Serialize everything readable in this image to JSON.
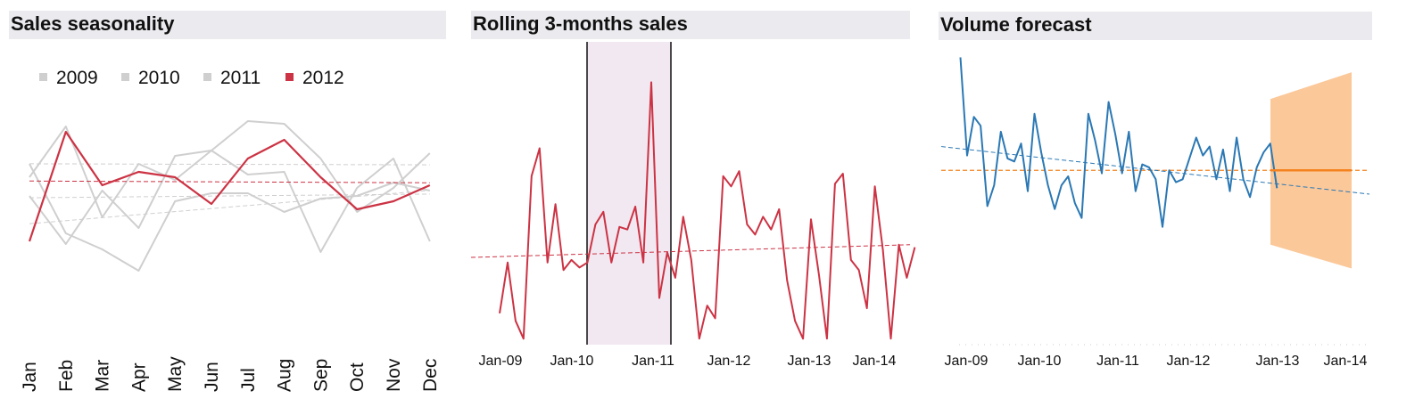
{
  "panels": {
    "seasonality": {
      "title": "Sales seasonality"
    },
    "rolling": {
      "title": "Rolling 3-months sales"
    },
    "forecast": {
      "title": "Volume forecast"
    }
  },
  "colors": {
    "highlight": "#cc3344",
    "grey": "#cfcfcf",
    "line_blue": "#2b78b4",
    "forecast_orange": "#f5821f",
    "band": "#fbc89a",
    "shade": "#f1e8f1",
    "title_bg": "#ebebef"
  },
  "chart_data": [
    {
      "type": "line",
      "title": "Sales seasonality",
      "categories": [
        "Jan",
        "Feb",
        "Mar",
        "Apr",
        "May",
        "Jun",
        "Jul",
        "Aug",
        "Sep",
        "Oct",
        "Nov",
        "Dec"
      ],
      "legend": [
        "2009",
        "2010",
        "2011",
        "2012"
      ],
      "legend_position": "top-left",
      "ylim": [
        0,
        100
      ],
      "series": [
        {
          "name": "2009",
          "highlight": false,
          "values": [
            62,
            36,
            30,
            22,
            48,
            51,
            51,
            44,
            49,
            50,
            55,
            52
          ]
        },
        {
          "name": "2010",
          "highlight": false,
          "values": [
            57,
            76,
            42,
            62,
            56,
            67,
            78,
            77,
            64,
            44,
            53,
            66
          ]
        },
        {
          "name": "2011",
          "highlight": false,
          "values": [
            50,
            32,
            52,
            38,
            65,
            67,
            58,
            59,
            29,
            53,
            64,
            33
          ]
        },
        {
          "name": "2012",
          "highlight": true,
          "values": [
            33,
            74,
            54,
            59,
            57,
            47,
            64,
            71,
            57,
            45,
            48,
            54
          ]
        }
      ],
      "trend_lines": true,
      "grid": false
    },
    {
      "type": "line",
      "title": "Rolling 3-months sales",
      "x_start": "2009-01",
      "x_step": "month",
      "x_tick_labels": [
        "Jan-09",
        "Jan-10",
        "Jan-11",
        "Jan-12",
        "Jan-13",
        "Jan-14"
      ],
      "ylim": [
        0,
        100
      ],
      "values": [
        5,
        25,
        2,
        -5,
        59,
        70,
        25,
        48,
        22,
        26,
        23,
        25,
        40,
        45,
        25,
        39,
        38,
        47,
        25,
        96,
        11,
        29,
        19,
        43,
        26,
        -5,
        8,
        3,
        59,
        55,
        61,
        40,
        36,
        43,
        38,
        46,
        18,
        2,
        -5,
        42,
        20,
        -5,
        56,
        60,
        26,
        22,
        7,
        55,
        30,
        -5,
        32,
        19,
        31
      ],
      "highlight_range": [
        "2010-01",
        "2011-01"
      ],
      "trend_line": {
        "start": 27,
        "end": 32
      },
      "grid": false
    },
    {
      "type": "line",
      "title": "Volume forecast",
      "x_start": "2009-01",
      "x_step": "month",
      "x_tick_labels": [
        "Jan-09",
        "Jan-10",
        "Jan-11",
        "Jan-12",
        "Jan-13",
        "Jan-14"
      ],
      "ylim": [
        0,
        100
      ],
      "values": [
        96,
        63,
        76,
        73,
        46,
        53,
        71,
        62,
        61,
        67,
        51,
        77,
        64,
        53,
        45,
        53,
        56,
        47,
        42,
        77,
        68,
        57,
        81,
        70,
        57,
        71,
        51,
        60,
        59,
        55,
        39,
        58,
        54,
        55,
        62,
        69,
        63,
        66,
        55,
        65,
        51,
        69,
        55,
        49,
        59,
        64,
        67,
        52
      ],
      "mean_line": 58,
      "trend_line": {
        "start": 66,
        "end": 50
      },
      "forecast": {
        "start": "2012-12",
        "end": "2013-12",
        "value": 58,
        "upper": [
          82,
          91
        ],
        "lower": [
          33,
          25
        ]
      },
      "grid": false
    }
  ]
}
